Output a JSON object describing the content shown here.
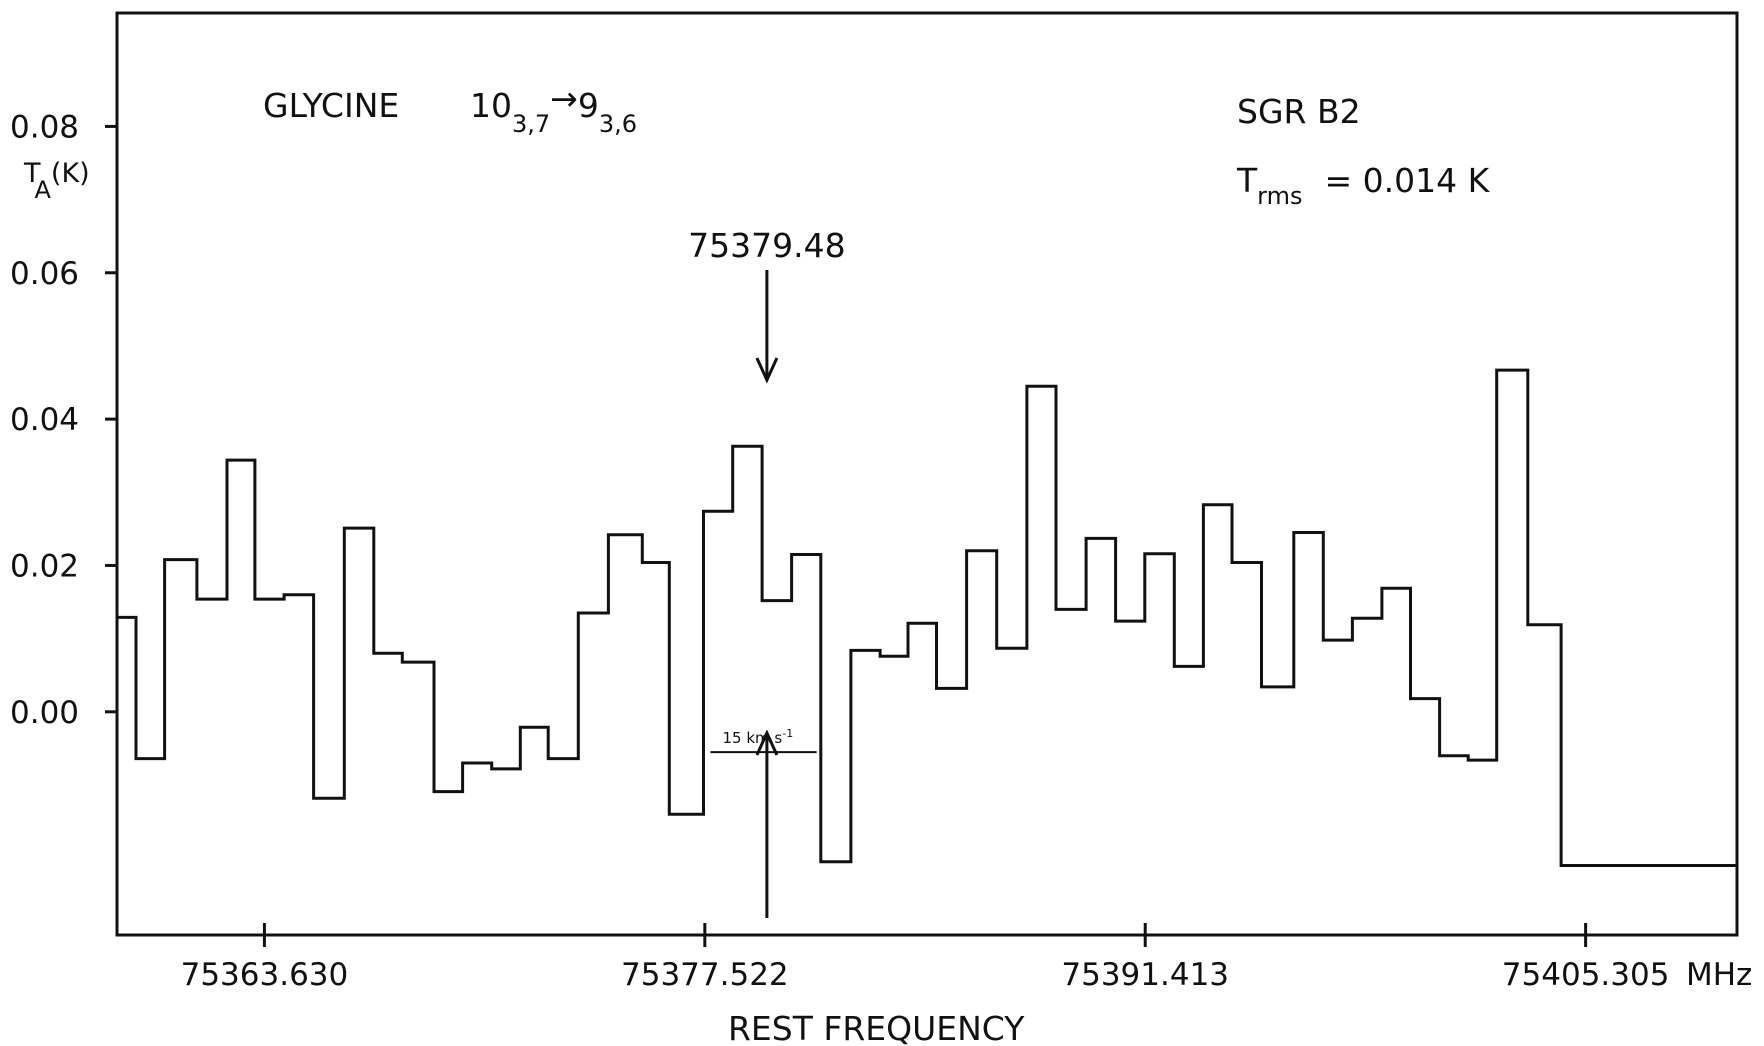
{
  "chart_data": {
    "type": "line",
    "step": true,
    "title": "GLYCINE",
    "transition": {
      "upper": "10",
      "upper_sub": "3,7",
      "arrow": "→",
      "lower": "9",
      "lower_sub": "3,6"
    },
    "source": "SGR B2",
    "trms": {
      "T": "T",
      "sub": "rms",
      "value": "= 0.014 K"
    },
    "ylabel": {
      "main": "T",
      "sub": "A",
      "unit": "(K)"
    },
    "xlabel": "REST FREQUENCY",
    "x_unit": "MHz",
    "yticks": [
      {
        "value": 0.08,
        "label": "0.08"
      },
      {
        "value": 0.06,
        "label": "0.06"
      },
      {
        "value": 0.04,
        "label": "0.04"
      },
      {
        "value": 0.02,
        "label": "0.02"
      },
      {
        "value": 0.0,
        "label": "0.00"
      }
    ],
    "xticks": [
      {
        "value": 75363.63,
        "label": "75363.630"
      },
      {
        "value": 75377.522,
        "label": "75377.522"
      },
      {
        "value": 75391.413,
        "label": "75391.413"
      },
      {
        "value": 75405.305,
        "label": "75405.305"
      }
    ],
    "xlim": [
      75358.98,
      75410.08
    ],
    "ylim": [
      -0.0305,
      0.0955
    ],
    "line_annotation": {
      "label": "75379.48",
      "x": 75379.48
    },
    "velocity_scale": {
      "label": "15  km s",
      "exp": "-1",
      "x_from": 75377.7,
      "x_to": 75381.05,
      "y": -0.0055
    },
    "steps": [
      {
        "x0": 75358.98,
        "x1": 75359.58,
        "y": 0.0129
      },
      {
        "x0": 75359.58,
        "x1": 75360.48,
        "y": -0.0064
      },
      {
        "x0": 75360.48,
        "x1": 75361.5,
        "y": 0.0208
      },
      {
        "x0": 75361.5,
        "x1": 75362.45,
        "y": 0.0154
      },
      {
        "x0": 75362.45,
        "x1": 75363.33,
        "y": 0.0344
      },
      {
        "x0": 75363.33,
        "x1": 75364.25,
        "y": 0.0154
      },
      {
        "x0": 75364.25,
        "x1": 75365.18,
        "y": 0.016
      },
      {
        "x0": 75365.18,
        "x1": 75366.15,
        "y": -0.0118
      },
      {
        "x0": 75366.15,
        "x1": 75367.08,
        "y": 0.0251
      },
      {
        "x0": 75367.08,
        "x1": 75367.98,
        "y": 0.008
      },
      {
        "x0": 75367.98,
        "x1": 75368.98,
        "y": 0.0068
      },
      {
        "x0": 75368.98,
        "x1": 75369.88,
        "y": -0.0109
      },
      {
        "x0": 75369.88,
        "x1": 75370.8,
        "y": -0.007
      },
      {
        "x0": 75370.8,
        "x1": 75371.7,
        "y": -0.0078
      },
      {
        "x0": 75371.7,
        "x1": 75372.58,
        "y": -0.0021
      },
      {
        "x0": 75372.58,
        "x1": 75373.53,
        "y": -0.0064
      },
      {
        "x0": 75373.53,
        "x1": 75374.48,
        "y": 0.0135
      },
      {
        "x0": 75374.48,
        "x1": 75375.55,
        "y": 0.0242
      },
      {
        "x0": 75375.55,
        "x1": 75376.4,
        "y": 0.0204
      },
      {
        "x0": 75376.4,
        "x1": 75377.48,
        "y": -0.014
      },
      {
        "x0": 75377.48,
        "x1": 75378.4,
        "y": 0.0274
      },
      {
        "x0": 75378.4,
        "x1": 75379.33,
        "y": 0.0363
      },
      {
        "x0": 75379.33,
        "x1": 75380.26,
        "y": 0.0152
      },
      {
        "x0": 75380.26,
        "x1": 75381.18,
        "y": 0.0215
      },
      {
        "x0": 75381.18,
        "x1": 75382.13,
        "y": -0.0205
      },
      {
        "x0": 75382.13,
        "x1": 75383.05,
        "y": 0.0084
      },
      {
        "x0": 75383.05,
        "x1": 75383.93,
        "y": 0.0076
      },
      {
        "x0": 75383.93,
        "x1": 75384.83,
        "y": 0.0121
      },
      {
        "x0": 75384.83,
        "x1": 75385.78,
        "y": 0.0032
      },
      {
        "x0": 75385.78,
        "x1": 75386.73,
        "y": 0.022
      },
      {
        "x0": 75386.73,
        "x1": 75387.68,
        "y": 0.0087
      },
      {
        "x0": 75387.68,
        "x1": 75388.6,
        "y": 0.0445
      },
      {
        "x0": 75388.6,
        "x1": 75389.55,
        "y": 0.014
      },
      {
        "x0": 75389.55,
        "x1": 75390.48,
        "y": 0.0237
      },
      {
        "x0": 75390.48,
        "x1": 75391.4,
        "y": 0.0124
      },
      {
        "x0": 75391.4,
        "x1": 75392.33,
        "y": 0.0216
      },
      {
        "x0": 75392.33,
        "x1": 75393.25,
        "y": 0.0062
      },
      {
        "x0": 75393.25,
        "x1": 75394.15,
        "y": 0.0283
      },
      {
        "x0": 75394.15,
        "x1": 75395.08,
        "y": 0.0204
      },
      {
        "x0": 75395.08,
        "x1": 75396.1,
        "y": 0.0034
      },
      {
        "x0": 75396.1,
        "x1": 75397.03,
        "y": 0.0245
      },
      {
        "x0": 75397.03,
        "x1": 75397.95,
        "y": 0.0098
      },
      {
        "x0": 75397.95,
        "x1": 75398.88,
        "y": 0.0128
      },
      {
        "x0": 75398.88,
        "x1": 75399.78,
        "y": 0.0169
      },
      {
        "x0": 75399.78,
        "x1": 75400.7,
        "y": 0.0018
      },
      {
        "x0": 75400.7,
        "x1": 75401.6,
        "y": -0.006
      },
      {
        "x0": 75401.6,
        "x1": 75402.5,
        "y": -0.0066
      },
      {
        "x0": 75402.5,
        "x1": 75403.48,
        "y": 0.0467
      },
      {
        "x0": 75403.48,
        "x1": 75404.53,
        "y": 0.0119
      },
      {
        "x0": 75404.53,
        "x1": 75410.08,
        "y": -0.021
      }
    ]
  }
}
